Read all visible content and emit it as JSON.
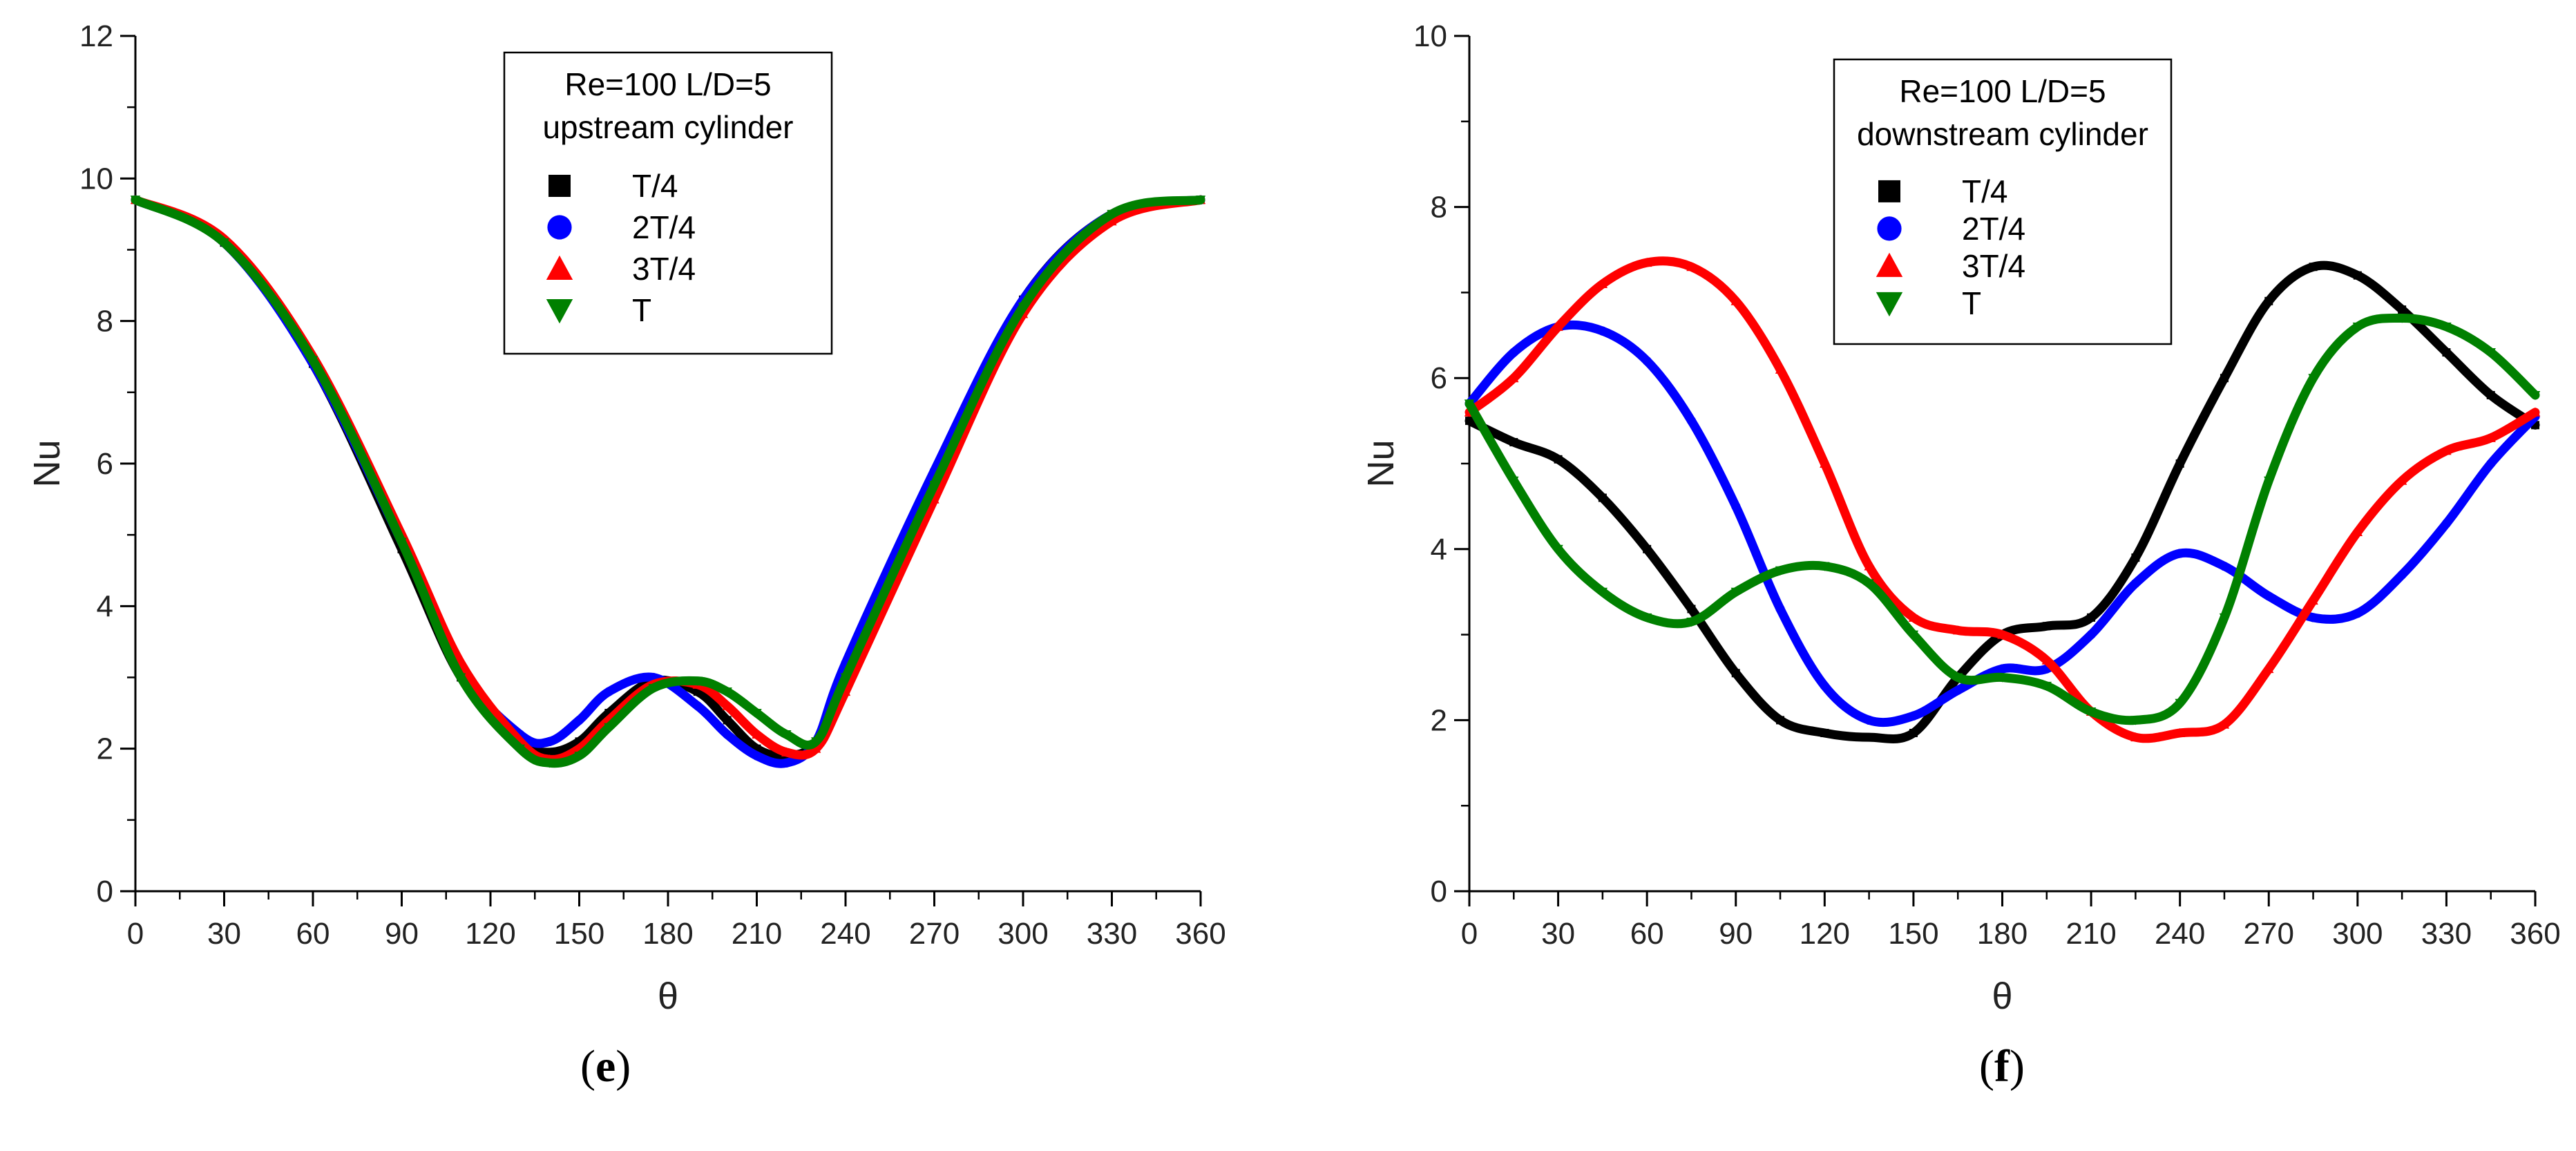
{
  "chart_data": [
    {
      "type": "line",
      "panel_label": {
        "open": "(",
        "letter": "e",
        "close": ")"
      },
      "title": "",
      "xlabel": "θ",
      "ylabel": "Nu",
      "xlim": [
        0,
        360
      ],
      "ylim": [
        0,
        12
      ],
      "xticks": [
        "0",
        "30",
        "60",
        "90",
        "120",
        "150",
        "180",
        "210",
        "240",
        "270",
        "300",
        "330",
        "360"
      ],
      "yticks": [
        "0",
        "2",
        "4",
        "6",
        "8",
        "10",
        "12"
      ],
      "legend": {
        "title_lines": [
          "Re=100 L/D=5",
          "upstream cylinder"
        ],
        "placement": "top-center"
      },
      "x": [
        0,
        30,
        60,
        90,
        110,
        130,
        140,
        150,
        160,
        175,
        190,
        200,
        210,
        220,
        230,
        240,
        270,
        300,
        330,
        360
      ],
      "series": [
        {
          "name": "T/4",
          "color": "#000000",
          "marker": "square",
          "values": [
            9.7,
            9.1,
            7.4,
            4.8,
            3.0,
            2.1,
            1.95,
            2.1,
            2.5,
            2.95,
            2.8,
            2.4,
            2.0,
            1.9,
            2.1,
            3.1,
            5.8,
            8.3,
            9.5,
            9.7
          ]
        },
        {
          "name": "2T/4",
          "color": "#0000ff",
          "marker": "circle",
          "values": [
            9.7,
            9.1,
            7.4,
            4.9,
            3.1,
            2.2,
            2.1,
            2.4,
            2.8,
            3.0,
            2.6,
            2.2,
            1.9,
            1.8,
            2.1,
            3.2,
            5.9,
            8.3,
            9.5,
            9.7
          ]
        },
        {
          "name": "3T/4",
          "color": "#ff0000",
          "marker": "triangle-up",
          "values": [
            9.7,
            9.15,
            7.5,
            5.0,
            3.2,
            2.1,
            1.85,
            2.0,
            2.4,
            2.9,
            2.9,
            2.6,
            2.2,
            1.95,
            2.0,
            2.8,
            5.5,
            8.1,
            9.4,
            9.7
          ]
        },
        {
          "name": "T",
          "color": "#008000",
          "marker": "triangle-down",
          "values": [
            9.7,
            9.1,
            7.45,
            4.9,
            3.0,
            2.0,
            1.8,
            1.9,
            2.3,
            2.85,
            2.95,
            2.8,
            2.5,
            2.2,
            2.1,
            3.0,
            5.7,
            8.2,
            9.5,
            9.7
          ]
        }
      ]
    },
    {
      "type": "line",
      "panel_label": {
        "open": "(",
        "letter": "f",
        "close": ")"
      },
      "title": "",
      "xlabel": "θ",
      "ylabel": "Nu",
      "xlim": [
        0,
        360
      ],
      "ylim": [
        0,
        10
      ],
      "xticks": [
        "0",
        "30",
        "60",
        "90",
        "120",
        "150",
        "180",
        "210",
        "240",
        "270",
        "300",
        "330",
        "360"
      ],
      "yticks": [
        "0",
        "2",
        "4",
        "6",
        "8",
        "10"
      ],
      "legend": {
        "title_lines": [
          "Re=100 L/D=5",
          "downstream cylinder"
        ],
        "placement": "top-center"
      },
      "x": [
        0,
        15,
        30,
        45,
        60,
        75,
        90,
        105,
        120,
        135,
        150,
        165,
        180,
        195,
        210,
        225,
        240,
        255,
        270,
        285,
        300,
        315,
        330,
        345,
        360
      ],
      "series": [
        {
          "name": "T/4",
          "color": "#000000",
          "marker": "square",
          "values": [
            5.5,
            5.25,
            5.05,
            4.6,
            4.0,
            3.3,
            2.55,
            2.0,
            1.85,
            1.8,
            1.85,
            2.5,
            3.0,
            3.1,
            3.2,
            3.9,
            5.0,
            6.0,
            6.9,
            7.3,
            7.2,
            6.8,
            6.3,
            5.8,
            5.45
          ]
        },
        {
          "name": "2T/4",
          "color": "#0000ff",
          "marker": "circle",
          "values": [
            5.7,
            6.3,
            6.6,
            6.55,
            6.2,
            5.5,
            4.5,
            3.3,
            2.4,
            2.0,
            2.05,
            2.35,
            2.6,
            2.6,
            3.0,
            3.6,
            3.95,
            3.8,
            3.45,
            3.2,
            3.25,
            3.7,
            4.3,
            5.0,
            5.55
          ]
        },
        {
          "name": "3T/4",
          "color": "#ff0000",
          "marker": "triangle-up",
          "values": [
            5.6,
            6.0,
            6.6,
            7.1,
            7.35,
            7.3,
            6.9,
            6.1,
            5.0,
            3.8,
            3.2,
            3.05,
            3.0,
            2.7,
            2.1,
            1.8,
            1.85,
            1.95,
            2.6,
            3.4,
            4.2,
            4.8,
            5.15,
            5.3,
            5.6
          ]
        },
        {
          "name": "T",
          "color": "#008000",
          "marker": "triangle-down",
          "values": [
            5.7,
            4.8,
            4.0,
            3.5,
            3.2,
            3.15,
            3.5,
            3.75,
            3.8,
            3.6,
            3.0,
            2.5,
            2.5,
            2.4,
            2.1,
            2.0,
            2.2,
            3.2,
            4.8,
            6.0,
            6.6,
            6.7,
            6.6,
            6.3,
            5.8
          ]
        }
      ]
    }
  ]
}
